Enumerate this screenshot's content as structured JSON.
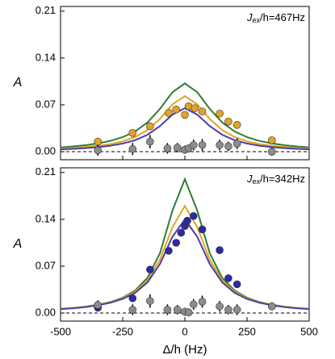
{
  "chart_data": [
    {
      "type": "scatter-fit",
      "annotation": {
        "symbol": "J",
        "sub": "ex",
        "rest": "/h=467Hz"
      },
      "ylabel": "A",
      "xlim": [
        -500,
        500
      ],
      "xticks": [
        -500,
        -250,
        0,
        250,
        500
      ],
      "ylim": [
        -0.012,
        0.217
      ],
      "yticks": [
        {
          "value": 0,
          "label": "0.00"
        },
        {
          "value": 0.07,
          "label": "0.07"
        },
        {
          "value": 0.14,
          "label": "0.14"
        },
        {
          "value": 0.21,
          "label": "0.21"
        }
      ],
      "zero_line": true,
      "curve_x": [
        -500,
        -450,
        -400,
        -350,
        -300,
        -250,
        -200,
        -150,
        -100,
        -50,
        0,
        50,
        100,
        150,
        200,
        250,
        300,
        350,
        400,
        450,
        500
      ],
      "curves": [
        {
          "color": "#2e7d32",
          "values": [
            0.0065,
            0.0079,
            0.0097,
            0.0124,
            0.0161,
            0.0217,
            0.0303,
            0.0438,
            0.0641,
            0.0889,
            0.102,
            0.0889,
            0.0641,
            0.0438,
            0.0303,
            0.0217,
            0.0161,
            0.0124,
            0.0097,
            0.0079,
            0.0065
          ]
        },
        {
          "color": "#e3a325",
          "values": [
            0.0045,
            0.0055,
            0.0069,
            0.0087,
            0.0114,
            0.0155,
            0.022,
            0.0324,
            0.049,
            0.0707,
            0.083,
            0.0707,
            0.049,
            0.0324,
            0.022,
            0.0155,
            0.0114,
            0.0087,
            0.0069,
            0.0055,
            0.0045
          ]
        },
        {
          "color": "#4b3fa3",
          "values": [
            0.0035,
            0.0043,
            0.0054,
            0.0068,
            0.009,
            0.0122,
            0.0172,
            0.0254,
            0.0384,
            0.0554,
            0.065,
            0.0554,
            0.0384,
            0.0254,
            0.0172,
            0.0122,
            0.009,
            0.0068,
            0.0054,
            0.0043,
            0.0035
          ]
        }
      ],
      "points": [
        {
          "color": "#e3a325",
          "x": [
            -350,
            -210,
            -140,
            -65,
            -35,
            0,
            15,
            40,
            70,
            140,
            175,
            210,
            350
          ],
          "values": [
            0.015,
            0.028,
            0.038,
            0.058,
            0.063,
            0.055,
            0.068,
            0.065,
            0.06,
            0.057,
            0.045,
            0.04,
            0.017
          ],
          "errors": [
            0.003,
            0.003,
            0.003,
            0.003,
            0.003,
            0.003,
            0.003,
            0.003,
            0.003,
            0.003,
            0.003,
            0.003,
            0.003
          ]
        },
        {
          "color": "#8c8c8c",
          "x": [
            -350,
            -210,
            -140,
            -70,
            -30,
            0,
            15,
            35,
            70,
            140,
            175,
            210,
            350
          ],
          "values": [
            0.002,
            0.004,
            0.015,
            0.005,
            0.006,
            0.003,
            0.005,
            0.01,
            0.01,
            0.01,
            0.008,
            0.012,
            0.0
          ],
          "errors": [
            0.008,
            0.009,
            0.01,
            0.008,
            0.007,
            0.006,
            0.006,
            0.008,
            0.009,
            0.008,
            0.007,
            0.008,
            0.006
          ]
        }
      ]
    },
    {
      "type": "scatter-fit",
      "annotation": {
        "symbol": "J",
        "sub": "ex",
        "rest": "/h=342Hz"
      },
      "ylabel": "A",
      "xlabel": "Δ/h (Hz)",
      "xlim": [
        -500,
        500
      ],
      "xticks": [
        -500,
        -250,
        0,
        250,
        500
      ],
      "ylim": [
        -0.012,
        0.217
      ],
      "yticks": [
        {
          "value": 0,
          "label": "0.00"
        },
        {
          "value": 0.07,
          "label": "0.07"
        },
        {
          "value": 0.14,
          "label": "0.14"
        },
        {
          "value": 0.21,
          "label": "0.21"
        }
      ],
      "zero_line": true,
      "curve_x": [
        -500,
        -450,
        -400,
        -350,
        -300,
        -250,
        -200,
        -150,
        -100,
        -50,
        0,
        50,
        100,
        150,
        200,
        250,
        300,
        350,
        400,
        450,
        500
      ],
      "curves": [
        {
          "color": "#2e7d32",
          "values": [
            0.0063,
            0.0077,
            0.0096,
            0.0124,
            0.0165,
            0.0229,
            0.0337,
            0.0529,
            0.0895,
            0.153,
            0.2,
            0.153,
            0.0895,
            0.0529,
            0.0337,
            0.0229,
            0.0165,
            0.0124,
            0.0096,
            0.0077,
            0.0063
          ]
        },
        {
          "color": "#e3a325",
          "values": [
            0.0062,
            0.0075,
            0.0094,
            0.0121,
            0.016,
            0.0221,
            0.032,
            0.0492,
            0.08,
            0.128,
            0.16,
            0.128,
            0.08,
            0.0492,
            0.032,
            0.0221,
            0.016,
            0.0121,
            0.0094,
            0.0075,
            0.0062
          ]
        },
        {
          "color": "#4b3fa3",
          "values": [
            0.0059,
            0.0072,
            0.009,
            0.0116,
            0.0153,
            0.021,
            0.0302,
            0.046,
            0.0734,
            0.114,
            0.14,
            0.114,
            0.0734,
            0.046,
            0.0302,
            0.021,
            0.0153,
            0.0116,
            0.009,
            0.0072,
            0.0059
          ]
        }
      ],
      "points": [
        {
          "color": "#2b2ba3",
          "x": [
            -350,
            -210,
            -140,
            -65,
            -35,
            -15,
            0,
            10,
            35,
            70,
            140,
            175,
            210,
            350
          ],
          "values": [
            0.008,
            0.022,
            0.065,
            0.093,
            0.105,
            0.12,
            0.13,
            0.138,
            0.145,
            0.125,
            0.094,
            0.052,
            0.043,
            0.01
          ],
          "errors": [
            0.004,
            0.004,
            0.004,
            0.004,
            0.004,
            0.004,
            0.004,
            0.004,
            0.004,
            0.004,
            0.004,
            0.004,
            0.004,
            0.004
          ]
        },
        {
          "color": "#8c8c8c",
          "x": [
            -350,
            -210,
            -140,
            -70,
            -30,
            0,
            15,
            35,
            70,
            140,
            175,
            210,
            350
          ],
          "values": [
            0.012,
            0.005,
            0.018,
            0.005,
            0.005,
            0.002,
            0.001,
            0.013,
            0.017,
            0.01,
            0.005,
            0.005,
            0.01
          ],
          "errors": [
            0.007,
            0.008,
            0.01,
            0.008,
            0.007,
            0.006,
            0.006,
            0.008,
            0.009,
            0.008,
            0.007,
            0.008,
            0.006
          ]
        }
      ]
    }
  ]
}
